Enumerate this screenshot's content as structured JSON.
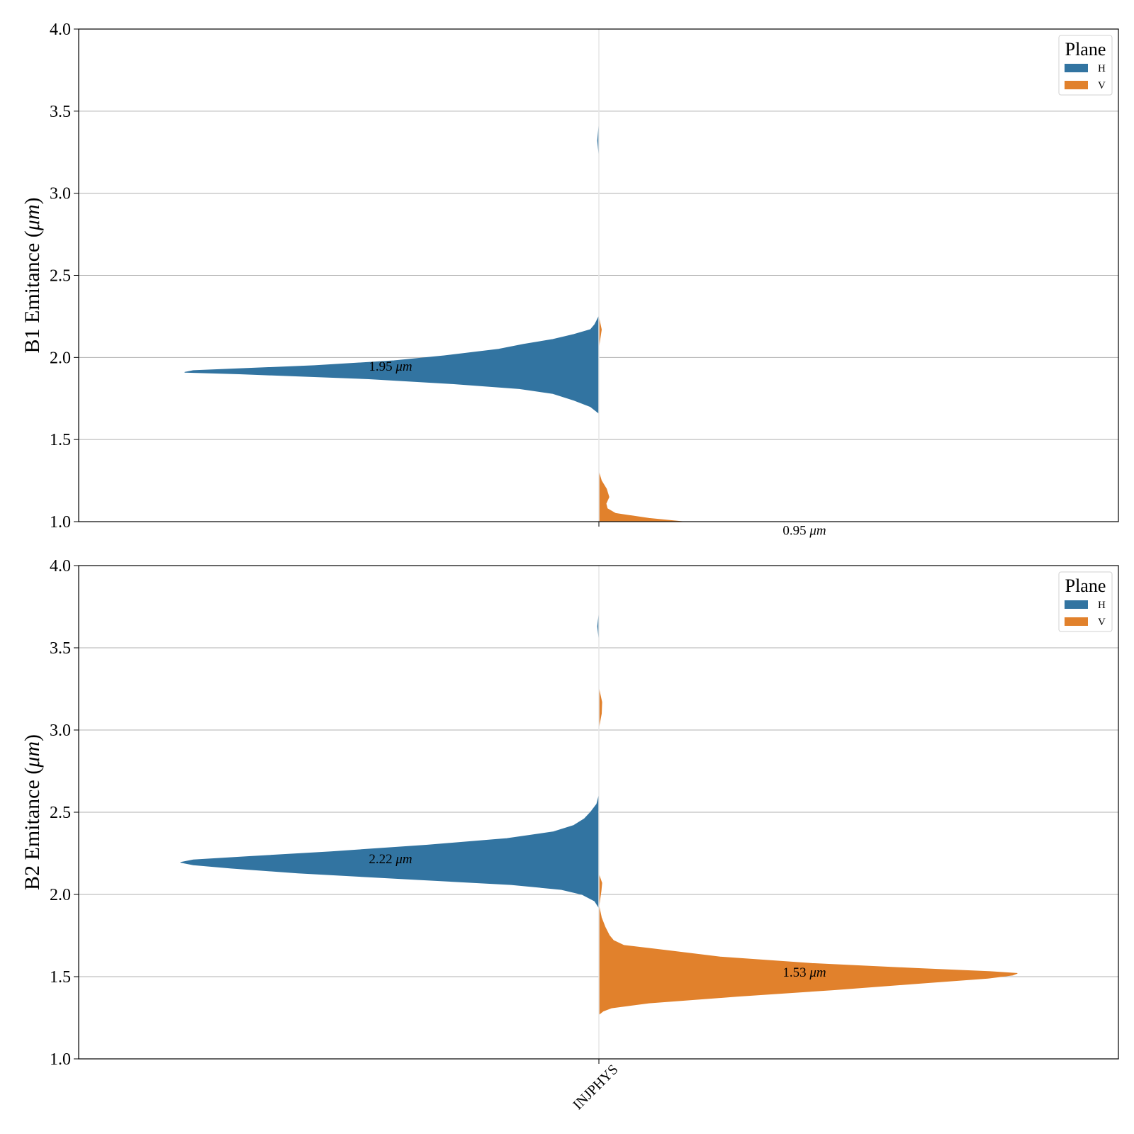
{
  "chart_data": [
    {
      "type": "violin",
      "ylabel": "B1 Emitance (μm)",
      "ylabel_prefix": "B1 Emitance (",
      "ylabel_unit": "μm",
      "ylabel_suffix": ")",
      "ylim": [
        1.0,
        4.0
      ],
      "yticks": [
        "1.0",
        "1.5",
        "2.0",
        "2.5",
        "3.0",
        "3.5",
        "4.0"
      ],
      "grid": "horizontal",
      "categories": [
        "INJPHYS"
      ],
      "show_xtick_labels": false,
      "legend": {
        "title": "Plane",
        "placement": "top-right",
        "entries": [
          {
            "label": "H",
            "color": "#3274a1"
          },
          {
            "label": "V",
            "color": "#e1812c"
          }
        ]
      },
      "series": [
        {
          "name": "H",
          "side": "left",
          "color": "#3274a1",
          "median": 1.95,
          "annotation": "1.95",
          "annotation_unit": "μm",
          "profile": [
            [
              1.66,
              0.0
            ],
            [
              1.7,
              0.02
            ],
            [
              1.74,
              0.06
            ],
            [
              1.78,
              0.11
            ],
            [
              1.81,
              0.19
            ],
            [
              1.84,
              0.35
            ],
            [
              1.87,
              0.55
            ],
            [
              1.9,
              0.86
            ],
            [
              1.91,
              0.99
            ],
            [
              1.92,
              0.97
            ],
            [
              1.95,
              0.68
            ],
            [
              1.98,
              0.49
            ],
            [
              2.01,
              0.37
            ],
            [
              2.05,
              0.24
            ],
            [
              2.08,
              0.18
            ],
            [
              2.11,
              0.11
            ],
            [
              2.14,
              0.06
            ],
            [
              2.17,
              0.02
            ],
            [
              2.2,
              0.01
            ],
            [
              2.25,
              0.0
            ],
            [
              3.24,
              0.0
            ],
            [
              3.32,
              0.003
            ],
            [
              3.41,
              0.0
            ]
          ]
        },
        {
          "name": "V",
          "side": "right",
          "color": "#e1812c",
          "median": 0.95,
          "annotation": "0.95",
          "annotation_unit": "μm",
          "profile": [
            [
              0.95,
              0.35
            ],
            [
              0.98,
              0.28
            ],
            [
              1.0,
              0.2
            ],
            [
              1.02,
              0.12
            ],
            [
              1.05,
              0.04
            ],
            [
              1.08,
              0.02
            ],
            [
              1.11,
              0.017
            ],
            [
              1.15,
              0.024
            ],
            [
              1.2,
              0.018
            ],
            [
              1.25,
              0.006
            ],
            [
              1.3,
              0.0
            ],
            [
              2.07,
              0.0
            ],
            [
              2.17,
              0.006
            ],
            [
              2.24,
              0.0
            ]
          ]
        }
      ]
    },
    {
      "type": "violin",
      "ylabel": "B2 Emitance (μm)",
      "ylabel_prefix": "B2 Emitance (",
      "ylabel_unit": "μm",
      "ylabel_suffix": ")",
      "ylim": [
        1.0,
        4.0
      ],
      "yticks": [
        "1.0",
        "1.5",
        "2.0",
        "2.5",
        "3.0",
        "3.5",
        "4.0"
      ],
      "grid": "horizontal",
      "categories": [
        "INJPHYS"
      ],
      "show_xtick_labels": true,
      "legend": {
        "title": "Plane",
        "placement": "top-right",
        "entries": [
          {
            "label": "H",
            "color": "#3274a1"
          },
          {
            "label": "V",
            "color": "#e1812c"
          }
        ]
      },
      "series": [
        {
          "name": "H",
          "side": "left",
          "color": "#3274a1",
          "median": 2.22,
          "annotation": "2.22",
          "annotation_unit": "μm",
          "profile": [
            [
              1.92,
              0.0
            ],
            [
              1.96,
              0.01
            ],
            [
              2.0,
              0.04
            ],
            [
              2.03,
              0.09
            ],
            [
              2.06,
              0.21
            ],
            [
              2.09,
              0.43
            ],
            [
              2.13,
              0.72
            ],
            [
              2.16,
              0.88
            ],
            [
              2.18,
              0.97
            ],
            [
              2.195,
              1.0
            ],
            [
              2.21,
              0.97
            ],
            [
              2.23,
              0.84
            ],
            [
              2.26,
              0.64
            ],
            [
              2.3,
              0.41
            ],
            [
              2.34,
              0.22
            ],
            [
              2.38,
              0.11
            ],
            [
              2.42,
              0.06
            ],
            [
              2.46,
              0.035
            ],
            [
              2.5,
              0.02
            ],
            [
              2.55,
              0.005
            ],
            [
              2.6,
              0.0
            ],
            [
              3.56,
              0.0
            ],
            [
              3.63,
              0.003
            ],
            [
              3.7,
              0.0
            ]
          ]
        },
        {
          "name": "V",
          "side": "right",
          "color": "#e1812c",
          "median": 1.53,
          "annotation": "1.53",
          "annotation_unit": "μm",
          "profile": [
            [
              1.27,
              0.0
            ],
            [
              1.29,
              0.01
            ],
            [
              1.31,
              0.03
            ],
            [
              1.34,
              0.12
            ],
            [
              1.38,
              0.33
            ],
            [
              1.42,
              0.56
            ],
            [
              1.46,
              0.77
            ],
            [
              1.49,
              0.93
            ],
            [
              1.51,
              0.99
            ],
            [
              1.52,
              1.0
            ],
            [
              1.53,
              0.94
            ],
            [
              1.55,
              0.76
            ],
            [
              1.58,
              0.51
            ],
            [
              1.62,
              0.29
            ],
            [
              1.66,
              0.16
            ],
            [
              1.69,
              0.06
            ],
            [
              1.72,
              0.035
            ],
            [
              1.75,
              0.025
            ],
            [
              1.8,
              0.015
            ],
            [
              1.86,
              0.006
            ],
            [
              1.93,
              0.0
            ],
            [
              2.02,
              0.005
            ],
            [
              2.07,
              0.007
            ],
            [
              2.12,
              0.0
            ],
            [
              2.32,
              0.0
            ],
            [
              2.6,
              0.0
            ],
            [
              3.02,
              0.0
            ],
            [
              3.1,
              0.006
            ],
            [
              3.17,
              0.007
            ],
            [
              3.25,
              0.0
            ]
          ]
        }
      ]
    }
  ]
}
